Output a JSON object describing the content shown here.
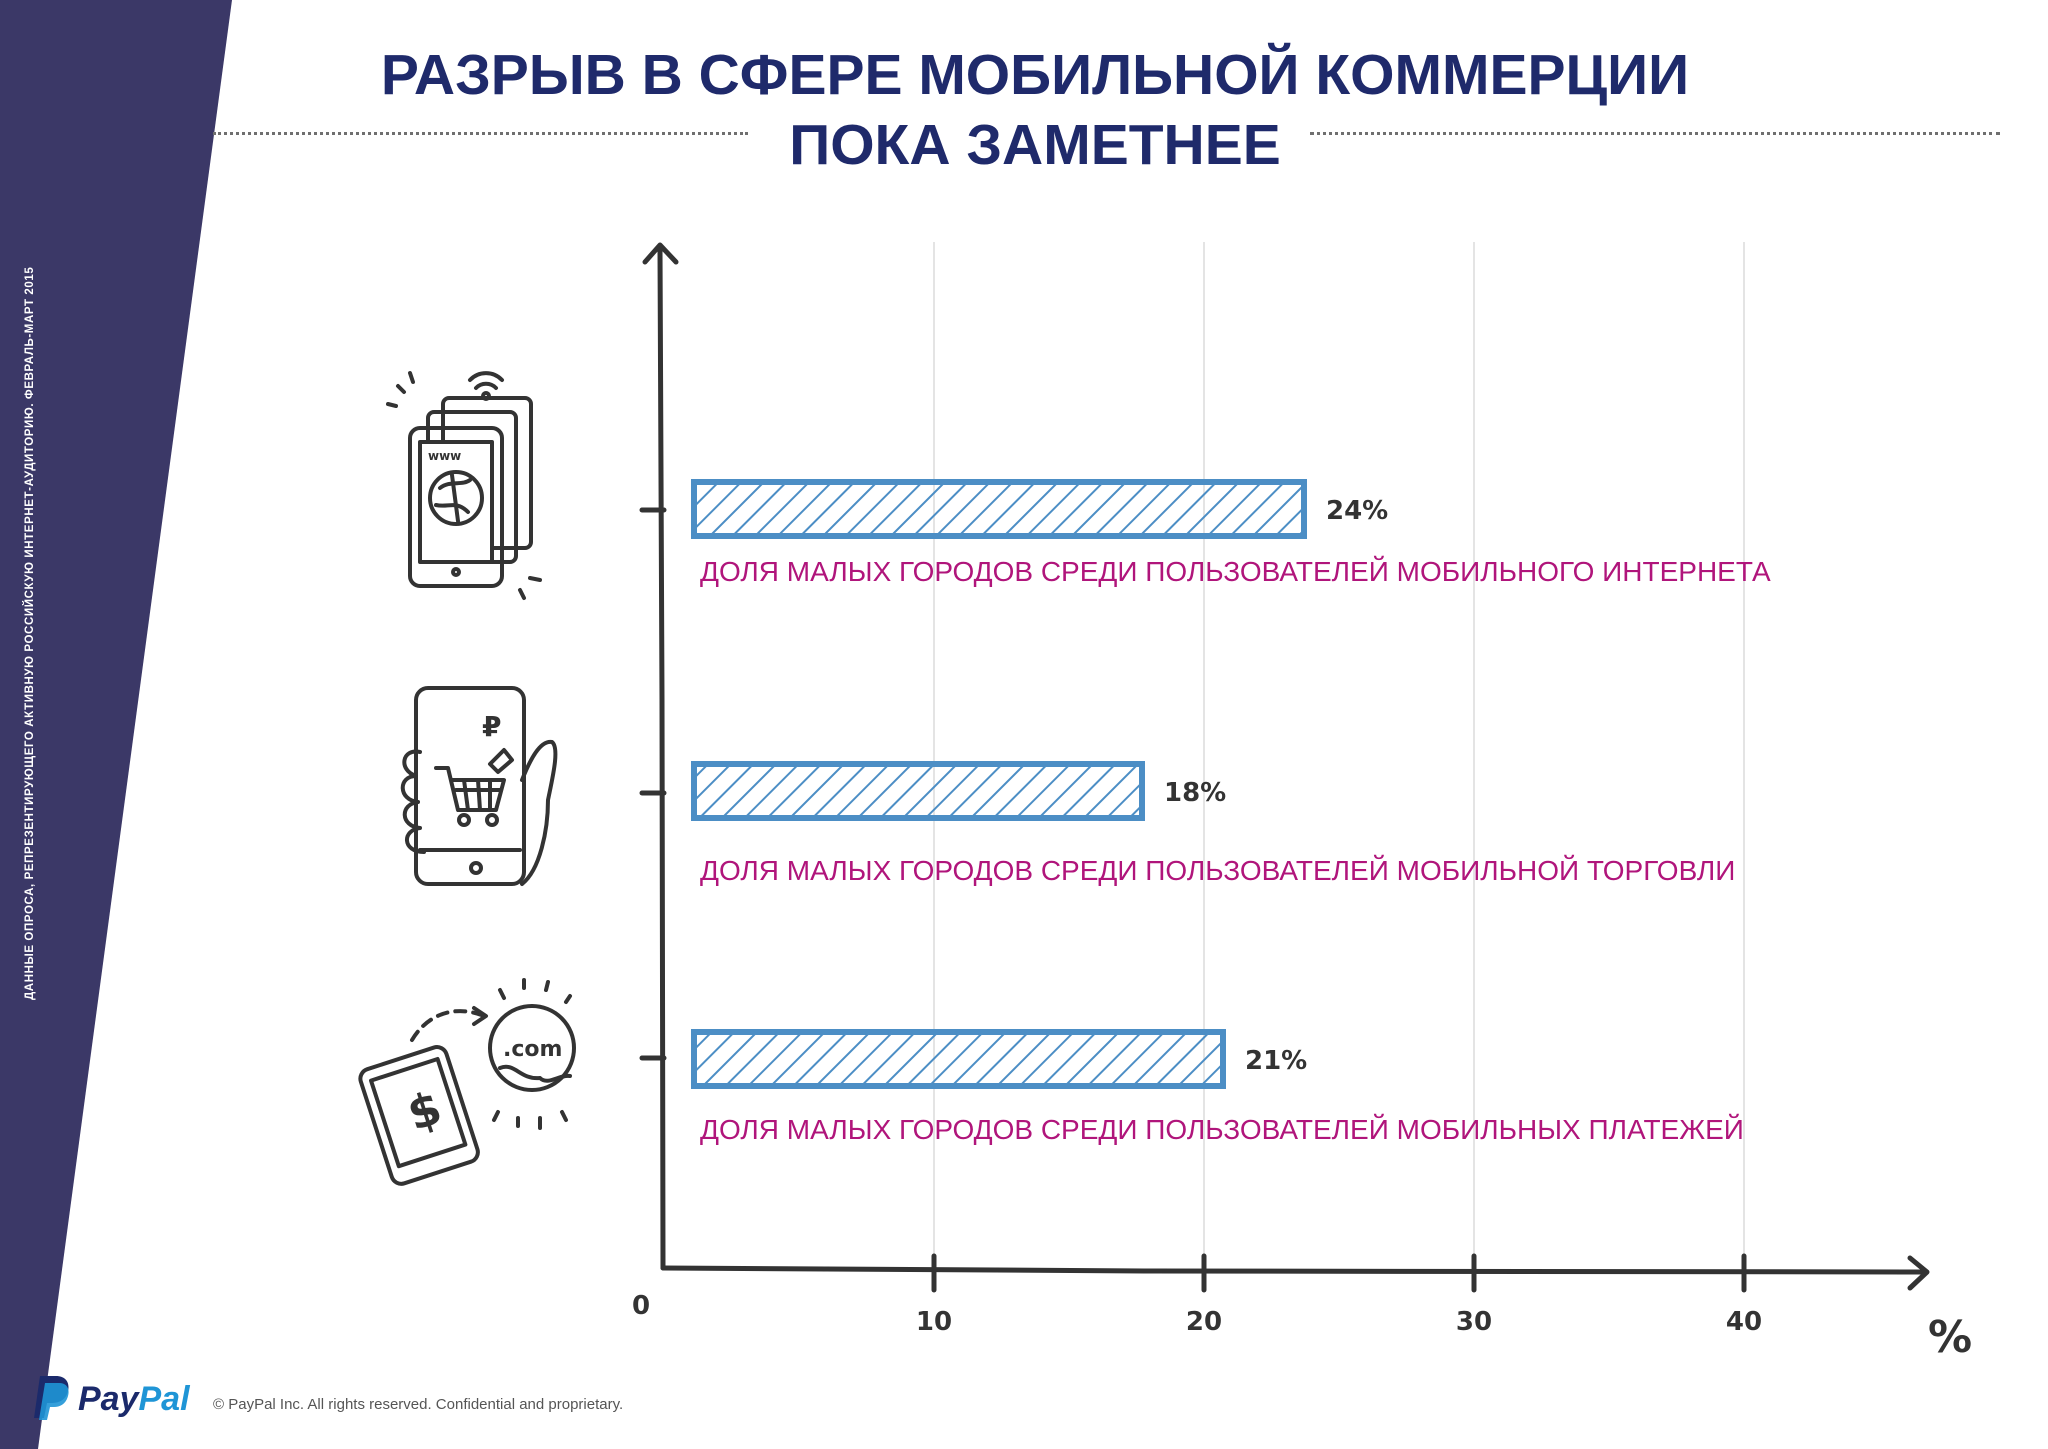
{
  "title": {
    "line1": "РАЗРЫВ В СФЕРЕ МОБИЛЬНОЙ КОММЕРЦИИ",
    "line2": "ПОКА ЗАМЕТНЕЕ"
  },
  "side_note": "Данные опроса, репрезентирующего активную российскую интернет-аудиторию. Февраль-март 2015",
  "colors": {
    "band": "#3b3867",
    "title": "#1f2a6b",
    "bar_stroke": "#4c8ec5",
    "category_label": "#b0157b",
    "axis": "#333333"
  },
  "chart_data": {
    "type": "bar",
    "orientation": "horizontal",
    "categories": [
      "ДОЛЯ МАЛЫХ ГОРОДОВ СРЕДИ ПОЛЬЗОВАТЕЛЕЙ МОБИЛЬНОГО ИНТЕРНЕТА",
      "ДОЛЯ МАЛЫХ ГОРОДОВ СРЕДИ ПОЛЬЗОВАТЕЛЕЙ МОБИЛЬНОЙ  ТОРГОВЛИ",
      "ДОЛЯ МАЛЫХ ГОРОДОВ СРЕДИ ПОЛЬЗОВАТЕЛЕЙ МОБИЛЬНЫХ  ПЛАТЕЖЕЙ"
    ],
    "values": [
      24,
      18,
      21
    ],
    "value_labels": [
      "24%",
      "18%",
      "21%"
    ],
    "icons": [
      "smartphone-www-icon",
      "hand-phone-cart-icon",
      "tablet-payment-globe-icon"
    ],
    "xlim": [
      0,
      45
    ],
    "xticks": [
      0,
      10,
      20,
      30,
      40
    ],
    "tick_labels": [
      "0",
      "10",
      "20",
      "30",
      "40"
    ],
    "unit": "%",
    "grid": true
  },
  "footer": {
    "brand_pay": "Pay",
    "brand_pal": "Pal",
    "copyright": "© PayPal Inc. All rights reserved. Confidential and proprietary."
  }
}
